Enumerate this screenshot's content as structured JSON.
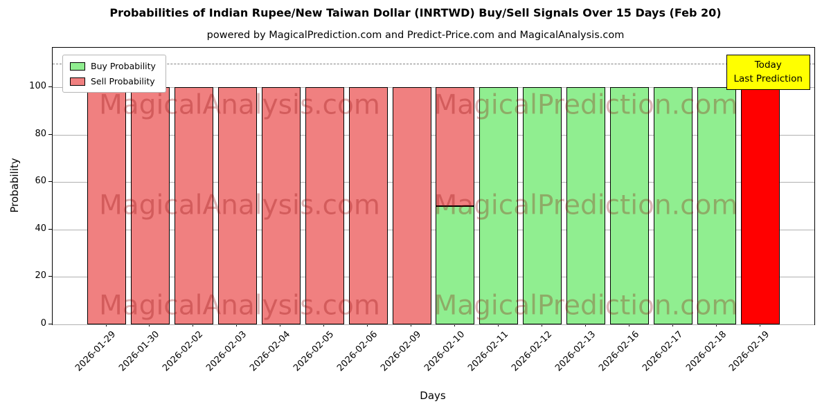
{
  "title": "Probabilities of Indian Rupee/New Taiwan Dollar (INRTWD) Buy/Sell Signals Over 15 Days (Feb 20)",
  "subtitle": "powered by MagicalPrediction.com and Predict-Price.com and MagicalAnalysis.com",
  "legend": [
    {
      "label": "Buy Probability",
      "color": "#90EE90"
    },
    {
      "label": "Sell Probability",
      "color": "#F08080"
    }
  ],
  "annotation": {
    "line1": "Today",
    "line2": "Last Prediction",
    "bg": "#FFFF00"
  },
  "watermarks": {
    "left": "MagicalAnalysis.com",
    "right": "MagicalPrediction.com"
  },
  "colors": {
    "buy": "#90EE90",
    "sell": "#F08080",
    "today": "#FF0000",
    "annotation_bg": "#FFFF00",
    "watermark": "#8B0000",
    "watermark_opacity": 0.28,
    "grid": "#B0B0B0"
  },
  "axes": {
    "xlabel": "Days",
    "ylabel": "Probability",
    "yticks": [
      0,
      20,
      40,
      60,
      80,
      100
    ],
    "ylim": [
      0,
      116.7
    ],
    "dashed_line_y": 110
  },
  "chart_data": {
    "type": "bar",
    "stacked": true,
    "title": "Probabilities of Indian Rupee/New Taiwan Dollar (INRTWD) Buy/Sell Signals Over 15 Days (Feb 20)",
    "xlabel": "Days",
    "ylabel": "Probability",
    "ylim": [
      0,
      116.7
    ],
    "dashed_line_y": 110,
    "grid": "horizontal",
    "legend_position": "upper left",
    "categories": [
      "2026-01-29",
      "2026-01-30",
      "2026-02-02",
      "2026-02-03",
      "2026-02-04",
      "2026-02-05",
      "2026-02-06",
      "2026-02-09",
      "2026-02-10",
      "2026-02-11",
      "2026-02-12",
      "2026-02-13",
      "2026-02-16",
      "2026-02-17",
      "2026-02-18",
      "2026-02-19"
    ],
    "series": [
      {
        "name": "Buy Probability",
        "color": "#90EE90",
        "values": [
          0,
          0,
          0,
          0,
          0,
          0,
          0,
          0,
          50,
          100,
          100,
          100,
          100,
          100,
          100,
          0
        ]
      },
      {
        "name": "Sell Probability",
        "color": "#F08080",
        "values": [
          100,
          100,
          100,
          100,
          100,
          100,
          100,
          100,
          50,
          0,
          0,
          0,
          0,
          0,
          0,
          100
        ]
      }
    ],
    "today_highlight": {
      "index": 15,
      "date": "2026-02-19",
      "value": 100,
      "color": "#FF0000",
      "label": "Today Last Prediction"
    }
  }
}
